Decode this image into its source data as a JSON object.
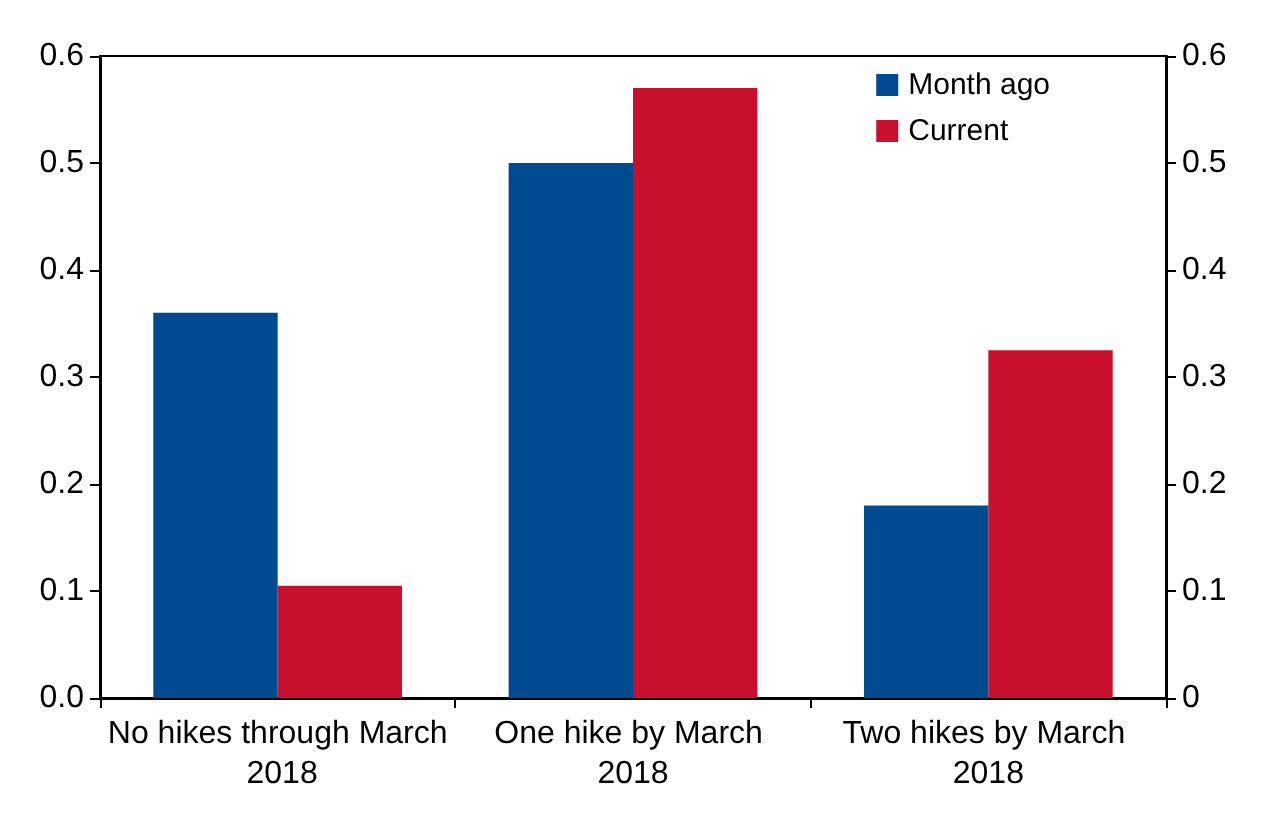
{
  "chart_data": {
    "type": "bar",
    "categories": [
      "No hikes through March 2018",
      "One hike by March 2018",
      "Two hikes by March 2018"
    ],
    "series": [
      {
        "name": "Month ago",
        "color": "#004a8f",
        "values": [
          0.36,
          0.5,
          0.18
        ]
      },
      {
        "name": "Current",
        "color": "#c8102e",
        "values": [
          0.105,
          0.57,
          0.325
        ]
      }
    ],
    "ylim": [
      0,
      0.6
    ],
    "yticks": [
      {
        "value": 0,
        "label": "0.0"
      },
      0.1,
      0.2,
      0.3,
      0.4,
      0.5,
      0.6
    ],
    "y2lim": [
      0,
      0.6
    ],
    "y2ticks": [
      0,
      0.1,
      0.2,
      0.3,
      0.4,
      0.5,
      0.6
    ],
    "grid": false,
    "legend": "top right"
  }
}
